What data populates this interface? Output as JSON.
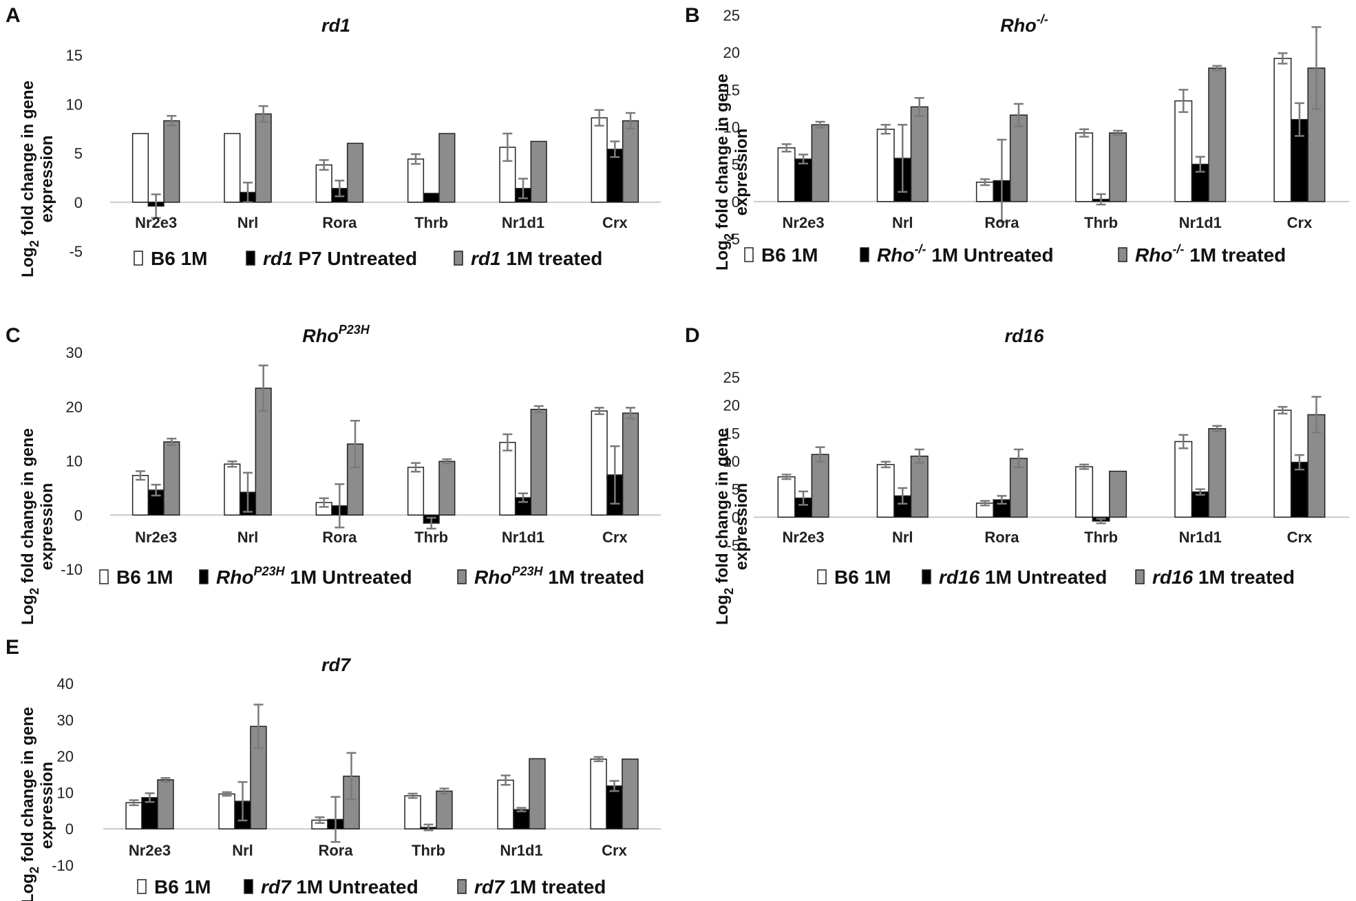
{
  "figure": {
    "ylabel_line1_prefix": "Log",
    "ylabel_line1_sub": "2",
    "ylabel_line1_suffix": " fold change in gene",
    "ylabel_line2": "expression"
  },
  "colors": {
    "b6": "#ffffff",
    "untreated": "#000000",
    "treated": "#8c8c8c",
    "axis": "#c8c8c8",
    "errorbar": "#7a7a7a",
    "bar_stroke": "#222222"
  },
  "chart_data": [
    {
      "panel": "A",
      "type": "bar",
      "title": "rd1",
      "title_sup": "",
      "categories": [
        "Nr2e3",
        "Nrl",
        "Rora",
        "Thrb",
        "Nr1d1",
        "Crx"
      ],
      "ylim": [
        -5,
        15
      ],
      "yticks": [
        -5,
        0,
        5,
        10,
        15
      ],
      "series": [
        {
          "name": "B6 1M",
          "label_parts": [
            {
              "t": "B6 1M",
              "i": false
            }
          ],
          "values": [
            7.0,
            7.0,
            3.8,
            4.4,
            5.6,
            8.6
          ],
          "err": [
            0,
            0,
            0.5,
            0.5,
            1.4,
            0.8
          ]
        },
        {
          "name": "rd1 P7 Untreated",
          "label_parts": [
            {
              "t": "rd1",
              "i": true
            },
            {
              "t": " P7 Untreated",
              "i": false
            }
          ],
          "values": [
            -0.4,
            1.0,
            1.4,
            0.9,
            1.4,
            5.4
          ],
          "err": [
            1.2,
            1.0,
            0.8,
            0,
            1.0,
            0.8
          ]
        },
        {
          "name": "rd1 1M treated",
          "label_parts": [
            {
              "t": "rd1",
              "i": true
            },
            {
              "t": " 1M treated",
              "i": false
            }
          ],
          "values": [
            8.3,
            9.0,
            6.0,
            7.0,
            6.2,
            8.3
          ],
          "err": [
            0.5,
            0.8,
            0,
            0,
            0,
            0.8
          ]
        }
      ]
    },
    {
      "panel": "B",
      "type": "bar",
      "title": "Rho",
      "title_sup": "-/-",
      "categories": [
        "Nr2e3",
        "Nrl",
        "Rora",
        "Thrb",
        "Nr1d1",
        "Crx"
      ],
      "ylim": [
        -5,
        25
      ],
      "yticks": [
        -5,
        0,
        5,
        10,
        15,
        20,
        25
      ],
      "series": [
        {
          "name": "B6 1M",
          "label_parts": [
            {
              "t": "B6 1M",
              "i": false
            }
          ],
          "values": [
            7.2,
            9.7,
            2.6,
            9.2,
            13.5,
            19.2
          ],
          "err": [
            0.5,
            0.6,
            0.4,
            0.5,
            1.5,
            0.7
          ]
        },
        {
          "name": "Rho-/- 1M Untreated",
          "label_parts": [
            {
              "t": "Rho",
              "i": true,
              "sup": "-/-"
            },
            {
              "t": " 1M Untreated",
              "i": false
            }
          ],
          "values": [
            5.7,
            5.8,
            2.8,
            0.3,
            5.0,
            11.0
          ],
          "err": [
            0.6,
            4.5,
            5.5,
            0.7,
            1.0,
            2.2
          ]
        },
        {
          "name": "Rho-/- 1M treated",
          "label_parts": [
            {
              "t": "Rho",
              "i": true,
              "sup": "-/-"
            },
            {
              "t": " 1M treated",
              "i": false
            }
          ],
          "values": [
            10.3,
            12.7,
            11.6,
            9.2,
            17.9,
            17.9
          ],
          "err": [
            0.4,
            1.2,
            1.5,
            0.3,
            0.3,
            5.5
          ]
        }
      ]
    },
    {
      "panel": "C",
      "type": "bar",
      "title": "Rho",
      "title_sup": "P23H",
      "categories": [
        "Nr2e3",
        "Nrl",
        "Rora",
        "Thrb",
        "Nr1d1",
        "Crx"
      ],
      "ylim": [
        -10,
        30
      ],
      "yticks": [
        -10,
        0,
        10,
        20,
        30
      ],
      "series": [
        {
          "name": "B6 1M",
          "label_parts": [
            {
              "t": "B6 1M",
              "i": false
            }
          ],
          "values": [
            7.3,
            9.4,
            2.3,
            8.8,
            13.4,
            19.2
          ],
          "err": [
            0.8,
            0.5,
            0.8,
            0.8,
            1.5,
            0.6
          ]
        },
        {
          "name": "RhoP23H 1M Untreated",
          "label_parts": [
            {
              "t": "Rho",
              "i": true,
              "sup": "P23H"
            },
            {
              "t": " 1M Untreated",
              "i": false
            }
          ],
          "values": [
            4.6,
            4.2,
            1.7,
            -1.5,
            3.2,
            7.4
          ],
          "err": [
            1.0,
            3.6,
            4.0,
            1.0,
            0.8,
            5.3
          ]
        },
        {
          "name": "RhoP23H 1M treated",
          "label_parts": [
            {
              "t": "Rho",
              "i": true,
              "sup": "P23H"
            },
            {
              "t": " 1M treated",
              "i": false
            }
          ],
          "values": [
            13.5,
            23.4,
            13.1,
            9.9,
            19.5,
            18.8
          ],
          "err": [
            0.6,
            4.2,
            4.3,
            0.4,
            0.6,
            1.0
          ]
        }
      ]
    },
    {
      "panel": "D",
      "type": "bar",
      "title": "rd16",
      "title_sup": "",
      "categories": [
        "Nr2e3",
        "Nrl",
        "Rora",
        "Thrb",
        "Nr1d1",
        "Crx"
      ],
      "ylim": [
        -5,
        25
      ],
      "yticks": [
        -5,
        0,
        5,
        10,
        15,
        20,
        25
      ],
      "series": [
        {
          "name": "B6 1M",
          "label_parts": [
            {
              "t": "B6 1M",
              "i": false
            }
          ],
          "values": [
            7.2,
            9.4,
            2.5,
            9.0,
            13.5,
            19.1
          ],
          "err": [
            0.4,
            0.5,
            0.4,
            0.4,
            1.2,
            0.6
          ]
        },
        {
          "name": "rd16 1M Untreated",
          "label_parts": [
            {
              "t": "rd16",
              "i": true
            },
            {
              "t": " 1M Untreated",
              "i": false
            }
          ],
          "values": [
            3.4,
            3.8,
            3.1,
            -0.7,
            4.5,
            9.8
          ],
          "err": [
            1.2,
            1.4,
            0.7,
            0.4,
            0.5,
            1.3
          ]
        },
        {
          "name": "rd16 1M treated",
          "label_parts": [
            {
              "t": "rd16",
              "i": true
            },
            {
              "t": " 1M treated",
              "i": false
            }
          ],
          "values": [
            11.2,
            10.9,
            10.5,
            8.2,
            15.8,
            18.3
          ],
          "err": [
            1.3,
            1.2,
            1.6,
            0,
            0.5,
            3.2
          ]
        }
      ]
    },
    {
      "panel": "E",
      "type": "bar",
      "title": "rd7",
      "title_sup": "",
      "categories": [
        "Nr2e3",
        "Nrl",
        "Rora",
        "Thrb",
        "Nr1d1",
        "Crx"
      ],
      "ylim": [
        -10,
        40
      ],
      "yticks": [
        -10,
        0,
        10,
        20,
        30,
        40
      ],
      "series": [
        {
          "name": "B6 1M",
          "label_parts": [
            {
              "t": "B6 1M",
              "i": false
            }
          ],
          "values": [
            7.2,
            9.6,
            2.4,
            9.1,
            13.4,
            19.2
          ],
          "err": [
            0.7,
            0.5,
            0.8,
            0.6,
            1.3,
            0.6
          ]
        },
        {
          "name": "rd7 1M Untreated",
          "label_parts": [
            {
              "t": "rd7",
              "i": true
            },
            {
              "t": " 1M Untreated",
              "i": false
            }
          ],
          "values": [
            8.6,
            7.6,
            2.6,
            0.4,
            5.3,
            11.8
          ],
          "err": [
            1.2,
            5.3,
            6.2,
            0.8,
            0.5,
            1.4
          ]
        },
        {
          "name": "rd7 1M treated",
          "label_parts": [
            {
              "t": "rd7",
              "i": true
            },
            {
              "t": " 1M treated",
              "i": false
            }
          ],
          "values": [
            13.5,
            28.2,
            14.5,
            10.4,
            19.3,
            19.2
          ],
          "err": [
            0.5,
            6.0,
            6.4,
            0.7,
            0,
            0
          ]
        }
      ]
    }
  ]
}
